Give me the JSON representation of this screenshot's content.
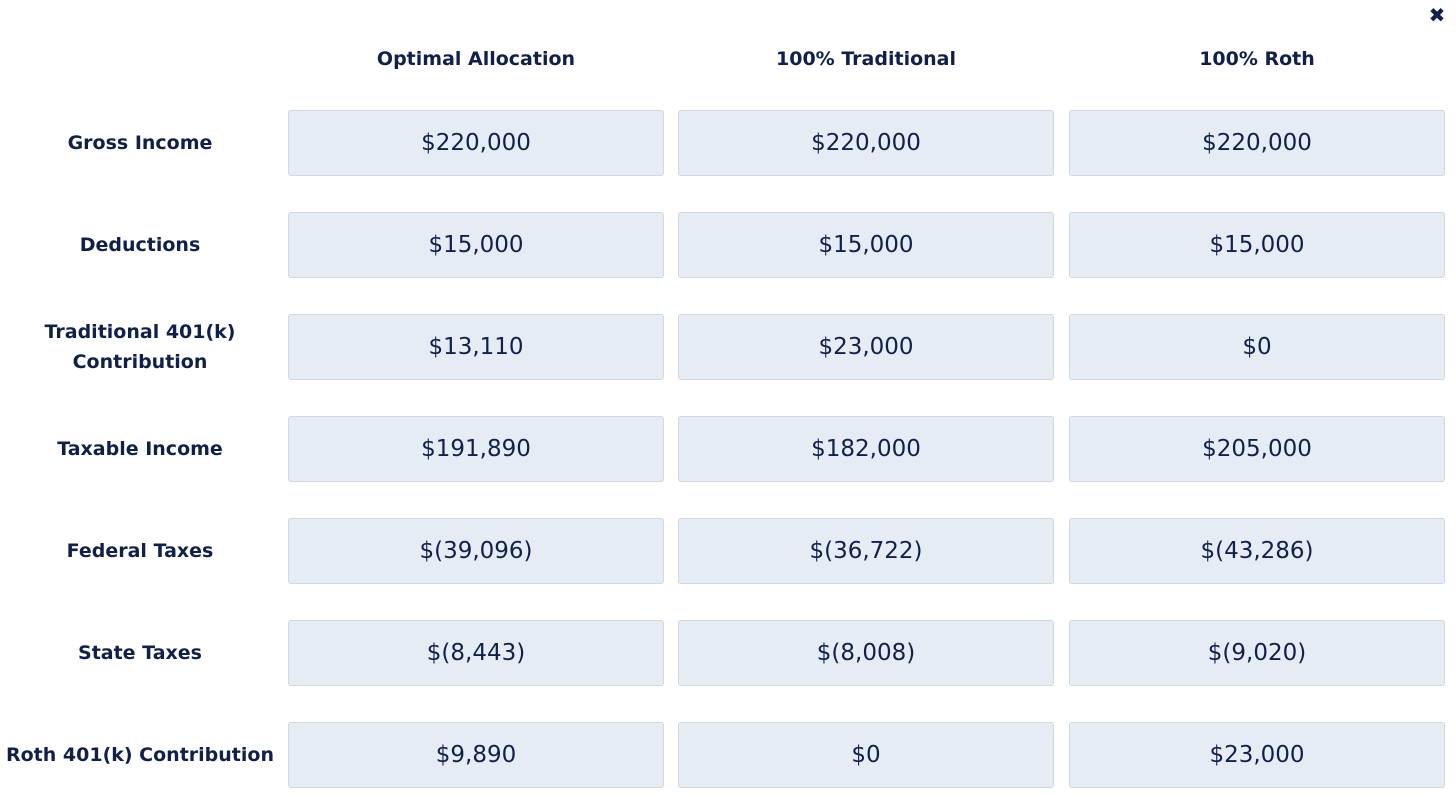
{
  "close_icon": "close-x-icon",
  "close_glyph": "✖",
  "columns": [
    "Optimal Allocation",
    "100% Traditional",
    "100% Roth"
  ],
  "rows": [
    {
      "label": "Gross Income",
      "values": [
        "$220,000",
        "$220,000",
        "$220,000"
      ]
    },
    {
      "label": "Deductions",
      "values": [
        "$15,000",
        "$15,000",
        "$15,000"
      ]
    },
    {
      "label": "Traditional 401(k) Contribution",
      "values": [
        "$13,110",
        "$23,000",
        "$0"
      ]
    },
    {
      "label": "Taxable Income",
      "values": [
        "$191,890",
        "$182,000",
        "$205,000"
      ]
    },
    {
      "label": "Federal Taxes",
      "values": [
        "$(39,096)",
        "$(36,722)",
        "$(43,286)"
      ]
    },
    {
      "label": "State Taxes",
      "values": [
        "$(8,443)",
        "$(8,008)",
        "$(9,020)"
      ]
    },
    {
      "label": "Roth 401(k) Contribution",
      "values": [
        "$9,890",
        "$0",
        "$23,000"
      ]
    }
  ]
}
